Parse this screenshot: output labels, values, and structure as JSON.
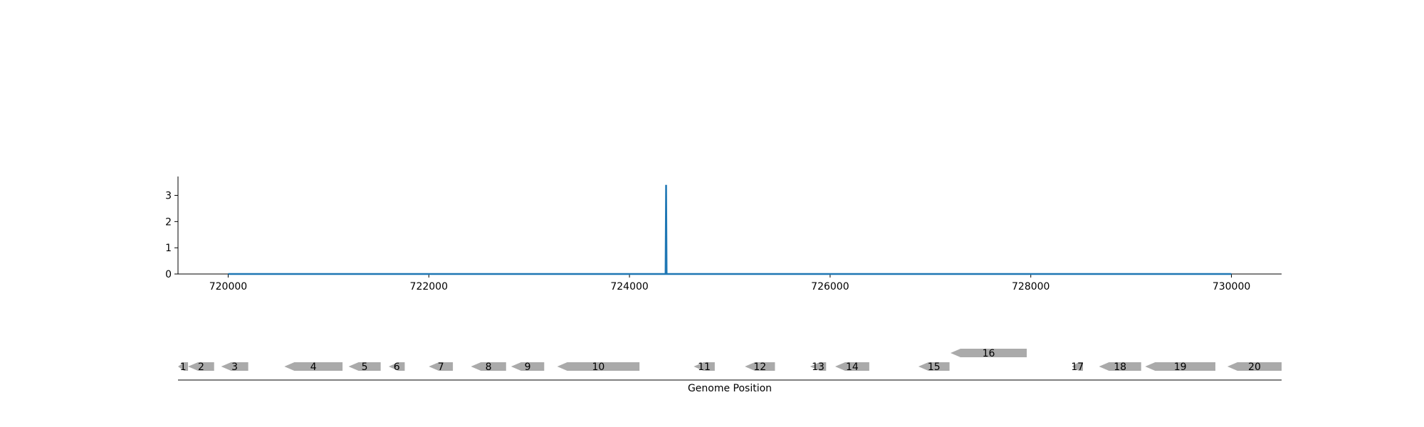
{
  "chart_data": [
    {
      "type": "line",
      "title": "",
      "xlabel": "",
      "ylabel": "",
      "xlim": [
        719500,
        730500
      ],
      "ylim": [
        0,
        3.72
      ],
      "x_ticks": [
        720000,
        722000,
        724000,
        726000,
        728000,
        730000
      ],
      "y_ticks": [
        0,
        1,
        2,
        3
      ],
      "grid": false,
      "series": [
        {
          "color": "#1f77b4",
          "x": [
            720000,
            724360,
            724365,
            724370,
            730000
          ],
          "y": [
            0,
            0,
            3.4,
            0,
            0
          ]
        }
      ]
    },
    {
      "type": "gene-track",
      "xlabel": "Genome Position",
      "xlim": [
        719500,
        730500
      ],
      "color": "#aaaaaa",
      "genes": [
        {
          "label": "1",
          "start": 719500,
          "end": 719600,
          "strand": -1,
          "row": 0
        },
        {
          "label": "2",
          "start": 719600,
          "end": 719860,
          "strand": -1,
          "row": 0
        },
        {
          "label": "3",
          "start": 719930,
          "end": 720200,
          "strand": -1,
          "row": 0
        },
        {
          "label": "4",
          "start": 720560,
          "end": 721140,
          "strand": -1,
          "row": 0
        },
        {
          "label": "5",
          "start": 721200,
          "end": 721520,
          "strand": -1,
          "row": 0
        },
        {
          "label": "6",
          "start": 721600,
          "end": 721760,
          "strand": -1,
          "row": 0
        },
        {
          "label": "7",
          "start": 722000,
          "end": 722240,
          "strand": -1,
          "row": 0
        },
        {
          "label": "8",
          "start": 722420,
          "end": 722770,
          "strand": -1,
          "row": 0
        },
        {
          "label": "9",
          "start": 722820,
          "end": 723150,
          "strand": -1,
          "row": 0
        },
        {
          "label": "10",
          "start": 723280,
          "end": 724100,
          "strand": -1,
          "row": 0
        },
        {
          "label": "11",
          "start": 724640,
          "end": 724850,
          "strand": -1,
          "row": 0
        },
        {
          "label": "12",
          "start": 725150,
          "end": 725450,
          "strand": -1,
          "row": 0
        },
        {
          "label": "13",
          "start": 725800,
          "end": 725960,
          "strand": -1,
          "row": 0
        },
        {
          "label": "14",
          "start": 726050,
          "end": 726390,
          "strand": -1,
          "row": 0
        },
        {
          "label": "15",
          "start": 726880,
          "end": 727190,
          "strand": -1,
          "row": 0
        },
        {
          "label": "16",
          "start": 727200,
          "end": 727960,
          "strand": -1,
          "row": 1
        },
        {
          "label": "17",
          "start": 728410,
          "end": 728520,
          "strand": -1,
          "row": 0
        },
        {
          "label": "18",
          "start": 728680,
          "end": 729100,
          "strand": -1,
          "row": 0
        },
        {
          "label": "19",
          "start": 729140,
          "end": 729840,
          "strand": -1,
          "row": 0
        },
        {
          "label": "20",
          "start": 729960,
          "end": 730500,
          "strand": -1,
          "row": 0
        }
      ]
    }
  ]
}
